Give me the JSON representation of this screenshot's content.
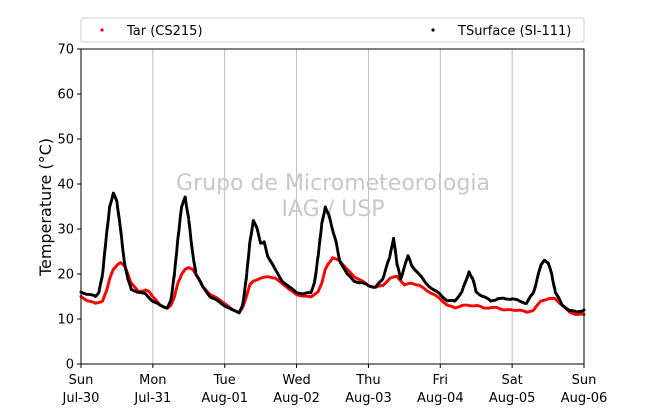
{
  "chart_data": {
    "type": "scatter",
    "ylabel": "Temperature (°C)",
    "xlabel": "",
    "ylim": [
      0,
      70
    ],
    "yticks": [
      0,
      10,
      20,
      30,
      40,
      50,
      60,
      70
    ],
    "xlim_days": [
      0,
      7
    ],
    "xticks": [
      {
        "day": 0,
        "line1": "Sun",
        "line2": "Jul-30"
      },
      {
        "day": 1,
        "line1": "Mon",
        "line2": "Jul-31"
      },
      {
        "day": 2,
        "line1": "Tue",
        "line2": "Aug-01"
      },
      {
        "day": 3,
        "line1": "Wed",
        "line2": "Aug-02"
      },
      {
        "day": 4,
        "line1": "Thu",
        "line2": "Aug-03"
      },
      {
        "day": 5,
        "line1": "Fri",
        "line2": "Aug-04"
      },
      {
        "day": 6,
        "line1": "Sat",
        "line2": "Aug-05"
      },
      {
        "day": 7,
        "line1": "Sun",
        "line2": "Aug-06"
      }
    ],
    "grid": "vertical",
    "legend_position": "top",
    "watermark": [
      "Grupo de Micrometeorologia",
      "IAG / USP"
    ],
    "series": [
      {
        "name": "Tar (CS215)",
        "color": "#ff0000",
        "points": [
          [
            0.0,
            15
          ],
          [
            0.1,
            14
          ],
          [
            0.2,
            13.5
          ],
          [
            0.3,
            14
          ],
          [
            0.35,
            16
          ],
          [
            0.4,
            19
          ],
          [
            0.45,
            21
          ],
          [
            0.5,
            22
          ],
          [
            0.55,
            22.5
          ],
          [
            0.6,
            22
          ],
          [
            0.65,
            20
          ],
          [
            0.7,
            18
          ],
          [
            0.8,
            16
          ],
          [
            0.9,
            16.5
          ],
          [
            0.95,
            16
          ],
          [
            1.0,
            15
          ],
          [
            1.1,
            13
          ],
          [
            1.2,
            12.5
          ],
          [
            1.25,
            13
          ],
          [
            1.3,
            15
          ],
          [
            1.35,
            18
          ],
          [
            1.4,
            20
          ],
          [
            1.45,
            21
          ],
          [
            1.5,
            21.5
          ],
          [
            1.55,
            21
          ],
          [
            1.6,
            20
          ],
          [
            1.7,
            17
          ],
          [
            1.8,
            15.5
          ],
          [
            1.9,
            14.5
          ],
          [
            2.0,
            13.5
          ],
          [
            2.1,
            12
          ],
          [
            2.2,
            11.5
          ],
          [
            2.25,
            12.5
          ],
          [
            2.3,
            15
          ],
          [
            2.35,
            17.5
          ],
          [
            2.4,
            18.5
          ],
          [
            2.5,
            19
          ],
          [
            2.6,
            19.5
          ],
          [
            2.7,
            19
          ],
          [
            2.8,
            18
          ],
          [
            2.9,
            16.5
          ],
          [
            3.0,
            15.5
          ],
          [
            3.1,
            15
          ],
          [
            3.2,
            15
          ],
          [
            3.3,
            16
          ],
          [
            3.35,
            18
          ],
          [
            3.4,
            21
          ],
          [
            3.45,
            22.5
          ],
          [
            3.5,
            23.5
          ],
          [
            3.6,
            23
          ],
          [
            3.7,
            21
          ],
          [
            3.8,
            19.5
          ],
          [
            3.9,
            18.5
          ],
          [
            4.0,
            17.5
          ],
          [
            4.1,
            17
          ],
          [
            4.2,
            17.5
          ],
          [
            4.3,
            19
          ],
          [
            4.4,
            19.5
          ],
          [
            4.5,
            17.5
          ],
          [
            4.6,
            18
          ],
          [
            4.7,
            17.5
          ],
          [
            4.8,
            16.5
          ],
          [
            4.9,
            15.5
          ],
          [
            5.0,
            14.5
          ],
          [
            5.1,
            13
          ],
          [
            5.2,
            12.5
          ],
          [
            5.3,
            13
          ],
          [
            5.4,
            13
          ],
          [
            5.5,
            13
          ],
          [
            5.6,
            12.5
          ],
          [
            5.7,
            12.5
          ],
          [
            5.8,
            12.5
          ],
          [
            5.9,
            12
          ],
          [
            6.0,
            12
          ],
          [
            6.1,
            12
          ],
          [
            6.2,
            11.5
          ],
          [
            6.3,
            12
          ],
          [
            6.4,
            14
          ],
          [
            6.5,
            14.5
          ],
          [
            6.6,
            14.5
          ],
          [
            6.7,
            13
          ],
          [
            6.8,
            11.5
          ],
          [
            6.9,
            11
          ],
          [
            7.0,
            11
          ]
        ]
      },
      {
        "name": "TSurface (SI-111)",
        "color": "#000000",
        "points": [
          [
            0.0,
            16
          ],
          [
            0.1,
            15.5
          ],
          [
            0.2,
            15
          ],
          [
            0.25,
            16
          ],
          [
            0.3,
            20
          ],
          [
            0.35,
            28
          ],
          [
            0.4,
            35
          ],
          [
            0.45,
            38
          ],
          [
            0.5,
            36
          ],
          [
            0.55,
            30
          ],
          [
            0.6,
            23
          ],
          [
            0.65,
            19
          ],
          [
            0.7,
            16.5
          ],
          [
            0.8,
            16
          ],
          [
            0.9,
            15.5
          ],
          [
            1.0,
            14
          ],
          [
            1.1,
            13
          ],
          [
            1.2,
            12.5
          ],
          [
            1.25,
            14
          ],
          [
            1.3,
            20
          ],
          [
            1.35,
            28
          ],
          [
            1.4,
            35
          ],
          [
            1.45,
            37
          ],
          [
            1.5,
            32
          ],
          [
            1.55,
            25
          ],
          [
            1.6,
            20
          ],
          [
            1.7,
            17
          ],
          [
            1.8,
            15
          ],
          [
            1.9,
            14
          ],
          [
            2.0,
            13
          ],
          [
            2.1,
            12
          ],
          [
            2.2,
            11.5
          ],
          [
            2.25,
            13
          ],
          [
            2.3,
            19
          ],
          [
            2.35,
            27
          ],
          [
            2.4,
            32
          ],
          [
            2.45,
            30
          ],
          [
            2.5,
            27
          ],
          [
            2.55,
            27
          ],
          [
            2.6,
            24
          ],
          [
            2.7,
            21
          ],
          [
            2.8,
            18.5
          ],
          [
            2.9,
            17
          ],
          [
            3.0,
            16
          ],
          [
            3.1,
            15.5
          ],
          [
            3.2,
            16
          ],
          [
            3.25,
            18
          ],
          [
            3.3,
            24
          ],
          [
            3.35,
            31
          ],
          [
            3.4,
            35
          ],
          [
            3.45,
            33
          ],
          [
            3.5,
            30
          ],
          [
            3.55,
            27
          ],
          [
            3.6,
            23
          ],
          [
            3.7,
            20
          ],
          [
            3.8,
            18.5
          ],
          [
            3.9,
            18
          ],
          [
            4.0,
            17.5
          ],
          [
            4.1,
            17
          ],
          [
            4.2,
            19
          ],
          [
            4.3,
            24
          ],
          [
            4.35,
            28
          ],
          [
            4.4,
            22
          ],
          [
            4.45,
            19
          ],
          [
            4.55,
            24
          ],
          [
            4.6,
            22
          ],
          [
            4.7,
            20
          ],
          [
            4.8,
            18
          ],
          [
            4.9,
            16.5
          ],
          [
            5.0,
            15.5
          ],
          [
            5.1,
            14
          ],
          [
            5.2,
            14
          ],
          [
            5.3,
            16
          ],
          [
            5.4,
            20.5
          ],
          [
            5.45,
            19
          ],
          [
            5.5,
            16
          ],
          [
            5.6,
            15
          ],
          [
            5.7,
            14
          ],
          [
            5.8,
            14.5
          ],
          [
            5.9,
            14.5
          ],
          [
            6.0,
            14.5
          ],
          [
            6.1,
            14
          ],
          [
            6.2,
            13.5
          ],
          [
            6.3,
            16
          ],
          [
            6.4,
            22
          ],
          [
            6.45,
            23
          ],
          [
            6.5,
            22.5
          ],
          [
            6.55,
            20
          ],
          [
            6.6,
            16
          ],
          [
            6.7,
            13
          ],
          [
            6.8,
            12
          ],
          [
            6.9,
            11.5
          ],
          [
            7.0,
            12
          ]
        ]
      }
    ]
  }
}
